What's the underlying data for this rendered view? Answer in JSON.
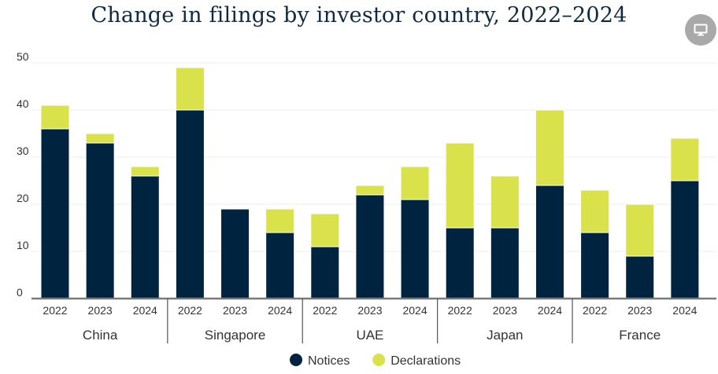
{
  "menu": {
    "icon": "monitor-icon"
  },
  "chart_data": {
    "type": "bar",
    "stacked": true,
    "title": "Change in filings by investor country, 2022–2024",
    "xlabel": "",
    "ylabel": "",
    "ylim": [
      0,
      50
    ],
    "yticks": [
      0,
      10,
      20,
      30,
      40,
      50
    ],
    "grid": true,
    "legend_position": "bottom-center",
    "groups": [
      {
        "name": "China",
        "categories": [
          "2022",
          "2023",
          "2024"
        ]
      },
      {
        "name": "Singapore",
        "categories": [
          "2022",
          "2023",
          "2024"
        ]
      },
      {
        "name": "UAE",
        "categories": [
          "2022",
          "2023",
          "2024"
        ]
      },
      {
        "name": "Japan",
        "categories": [
          "2022",
          "2023",
          "2024"
        ]
      },
      {
        "name": "France",
        "categories": [
          "2022",
          "2023",
          "2024"
        ]
      }
    ],
    "series": [
      {
        "name": "Notices",
        "color": "#00233f",
        "values": [
          36,
          33,
          26,
          40,
          19,
          14,
          11,
          22,
          21,
          15,
          15,
          24,
          14,
          9,
          25
        ]
      },
      {
        "name": "Declarations",
        "color": "#d9e24a",
        "values": [
          5,
          2,
          2,
          9,
          0,
          5,
          7,
          2,
          7,
          18,
          11,
          16,
          9,
          11,
          9
        ]
      }
    ]
  }
}
